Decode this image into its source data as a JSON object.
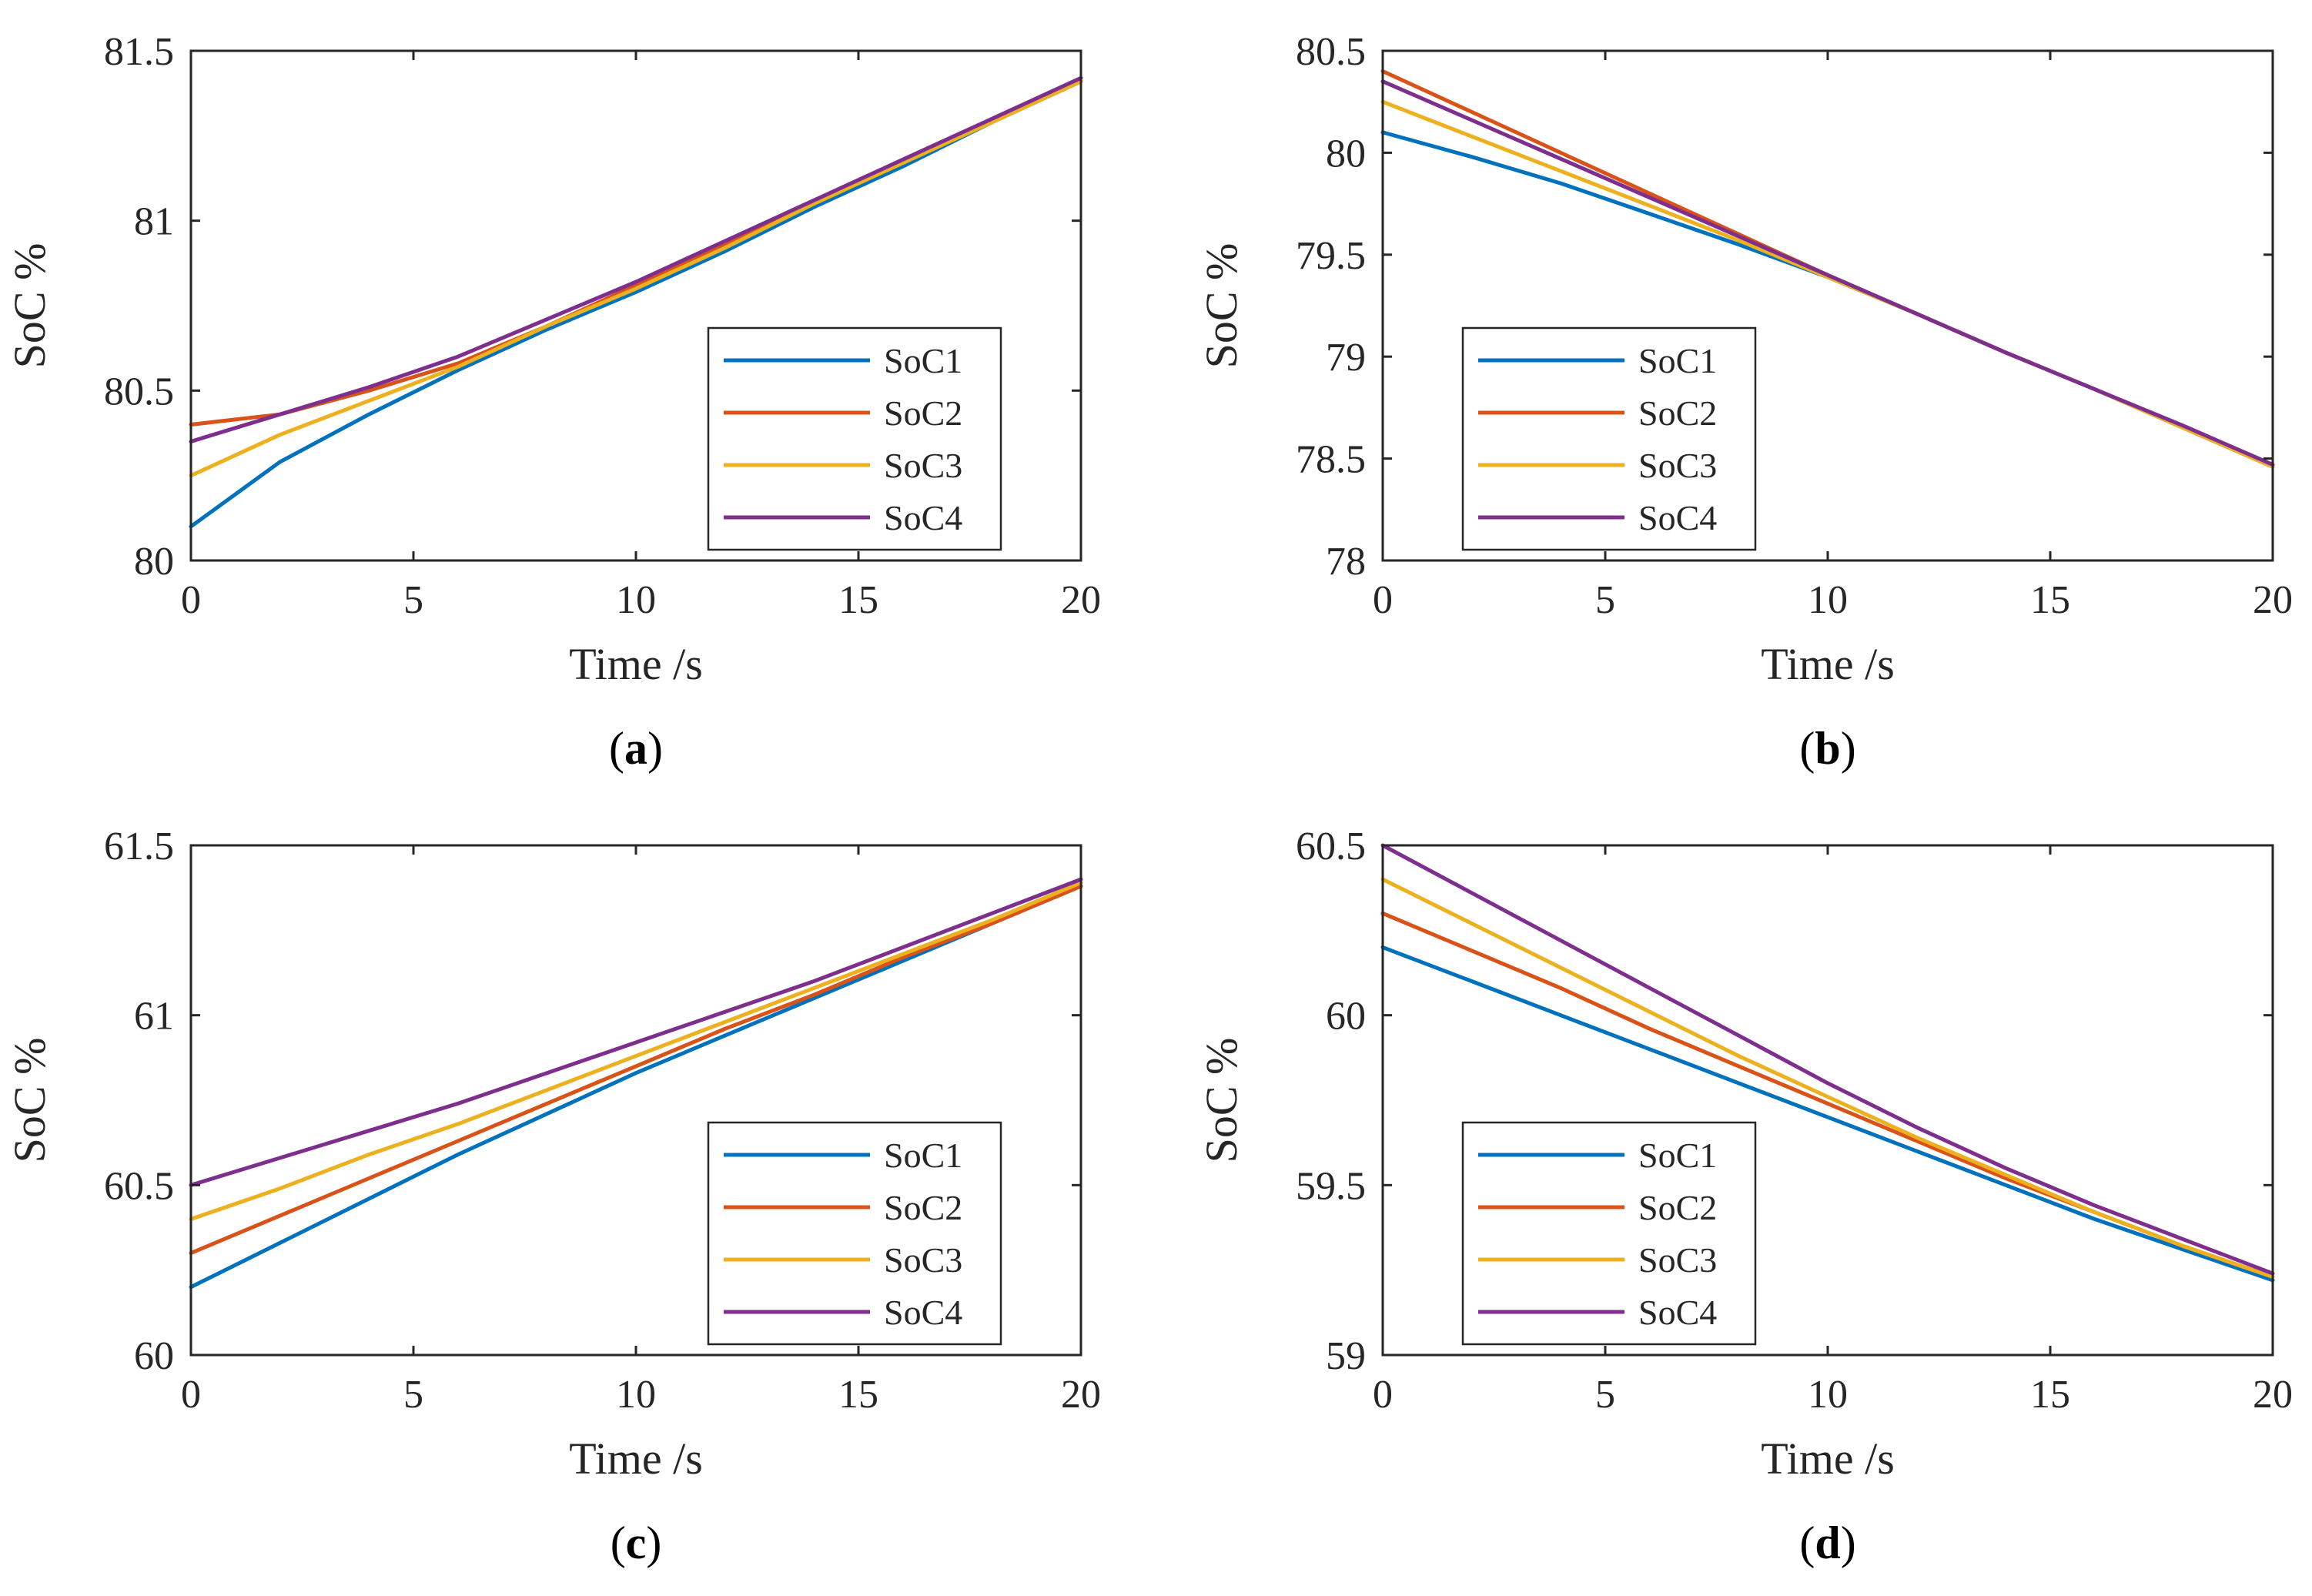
{
  "colors": {
    "SoC1": "#0072BD",
    "SoC2": "#D95319",
    "SoC3": "#EDB120",
    "SoC4": "#7E2F8E",
    "axis": "#262626"
  },
  "chart_data": [
    {
      "type": "line",
      "id": "a",
      "caption_letter": "a",
      "xlabel": "Time /s",
      "ylabel": "SoC %",
      "xlim": [
        0,
        20
      ],
      "ylim": [
        80,
        81.5
      ],
      "xticks": [
        0,
        5,
        10,
        15,
        20
      ],
      "xtick_labels": [
        "0",
        "5",
        "10",
        "15",
        "20"
      ],
      "yticks": [
        80,
        80.5,
        81,
        81.5
      ],
      "ytick_labels": [
        "80",
        "80.5",
        "81",
        "81.5"
      ],
      "legend_placement": "lower-right",
      "x": [
        0,
        2,
        4,
        6,
        8,
        10,
        12,
        14,
        16,
        18,
        20
      ],
      "series": [
        {
          "name": "SoC1",
          "values": [
            80.1,
            80.29,
            80.43,
            80.56,
            80.68,
            80.79,
            80.91,
            81.04,
            81.16,
            81.29,
            81.41
          ]
        },
        {
          "name": "SoC2",
          "values": [
            80.4,
            80.43,
            80.5,
            80.58,
            80.69,
            80.81,
            80.93,
            81.05,
            81.17,
            81.29,
            81.41
          ]
        },
        {
          "name": "SoC3",
          "values": [
            80.25,
            80.37,
            80.47,
            80.57,
            80.69,
            80.8,
            80.92,
            81.05,
            81.17,
            81.29,
            81.41
          ]
        },
        {
          "name": "SoC4",
          "values": [
            80.35,
            80.43,
            80.51,
            80.6,
            80.71,
            80.82,
            80.94,
            81.06,
            81.18,
            81.3,
            81.42
          ]
        }
      ]
    },
    {
      "type": "line",
      "id": "b",
      "caption_letter": "b",
      "xlabel": "Time /s",
      "ylabel": "SoC %",
      "xlim": [
        0,
        20
      ],
      "ylim": [
        78,
        80.5
      ],
      "xticks": [
        0,
        5,
        10,
        15,
        20
      ],
      "xtick_labels": [
        "0",
        "5",
        "10",
        "15",
        "20"
      ],
      "yticks": [
        78,
        78.5,
        79,
        79.5,
        80,
        80.5
      ],
      "ytick_labels": [
        "78",
        "78.5",
        "79",
        "79.5",
        "80",
        "80.5"
      ],
      "legend_placement": "lower-left",
      "x": [
        0,
        2,
        4,
        6,
        8,
        10,
        12,
        14,
        16,
        18,
        20
      ],
      "series": [
        {
          "name": "SoC1",
          "values": [
            80.1,
            79.98,
            79.85,
            79.7,
            79.55,
            79.39,
            79.21,
            79.02,
            78.84,
            78.65,
            78.46
          ]
        },
        {
          "name": "SoC2",
          "values": [
            80.4,
            80.2,
            80.0,
            79.8,
            79.6,
            79.4,
            79.21,
            79.02,
            78.84,
            78.65,
            78.46
          ]
        },
        {
          "name": "SoC3",
          "values": [
            80.25,
            80.08,
            79.91,
            79.74,
            79.57,
            79.39,
            79.21,
            79.02,
            78.84,
            78.65,
            78.46
          ]
        },
        {
          "name": "SoC4",
          "values": [
            80.35,
            80.16,
            79.97,
            79.78,
            79.59,
            79.4,
            79.21,
            79.02,
            78.84,
            78.66,
            78.47
          ]
        }
      ]
    },
    {
      "type": "line",
      "id": "c",
      "caption_letter": "c",
      "xlabel": "Time /s",
      "ylabel": "SoC %",
      "xlim": [
        0,
        20
      ],
      "ylim": [
        60,
        61.5
      ],
      "xticks": [
        0,
        5,
        10,
        15,
        20
      ],
      "xtick_labels": [
        "0",
        "5",
        "10",
        "15",
        "20"
      ],
      "yticks": [
        60,
        60.5,
        61,
        61.5
      ],
      "ytick_labels": [
        "60",
        "60.5",
        "61",
        "61.5"
      ],
      "legend_placement": "lower-right",
      "x": [
        0,
        2,
        4,
        6,
        8,
        10,
        12,
        14,
        16,
        18,
        20
      ],
      "series": [
        {
          "name": "SoC1",
          "values": [
            60.2,
            60.33,
            60.46,
            60.59,
            60.71,
            60.83,
            60.94,
            61.05,
            61.16,
            61.27,
            61.38
          ]
        },
        {
          "name": "SoC2",
          "values": [
            60.3,
            60.41,
            60.52,
            60.63,
            60.74,
            60.85,
            60.96,
            61.06,
            61.17,
            61.27,
            61.38
          ]
        },
        {
          "name": "SoC3",
          "values": [
            60.4,
            60.49,
            60.59,
            60.68,
            60.78,
            60.88,
            60.98,
            61.08,
            61.18,
            61.28,
            61.39
          ]
        },
        {
          "name": "SoC4",
          "values": [
            60.5,
            60.58,
            60.66,
            60.74,
            60.83,
            60.92,
            61.01,
            61.1,
            61.2,
            61.3,
            61.4
          ]
        }
      ]
    },
    {
      "type": "line",
      "id": "d",
      "caption_letter": "d",
      "xlabel": "Time /s",
      "ylabel": "SoC %",
      "xlim": [
        0,
        20
      ],
      "ylim": [
        59,
        60.5
      ],
      "xticks": [
        0,
        5,
        10,
        15,
        20
      ],
      "xtick_labels": [
        "0",
        "5",
        "10",
        "15",
        "20"
      ],
      "yticks": [
        59,
        59.5,
        60,
        60.5
      ],
      "ytick_labels": [
        "59",
        "59.5",
        "60",
        "60.5"
      ],
      "legend_placement": "lower-left",
      "x": [
        0,
        2,
        4,
        6,
        8,
        10,
        12,
        14,
        16,
        18,
        20
      ],
      "series": [
        {
          "name": "SoC1",
          "values": [
            60.2,
            60.1,
            60.0,
            59.9,
            59.8,
            59.7,
            59.6,
            59.5,
            59.4,
            59.31,
            59.22
          ]
        },
        {
          "name": "SoC2",
          "values": [
            60.3,
            60.19,
            60.08,
            59.96,
            59.85,
            59.74,
            59.63,
            59.52,
            59.42,
            59.32,
            59.23
          ]
        },
        {
          "name": "SoC3",
          "values": [
            60.4,
            60.27,
            60.14,
            60.01,
            59.88,
            59.76,
            59.64,
            59.53,
            59.42,
            59.32,
            59.23
          ]
        },
        {
          "name": "SoC4",
          "values": [
            60.5,
            60.36,
            60.22,
            60.08,
            59.94,
            59.8,
            59.67,
            59.55,
            59.44,
            59.34,
            59.24
          ]
        }
      ]
    }
  ]
}
